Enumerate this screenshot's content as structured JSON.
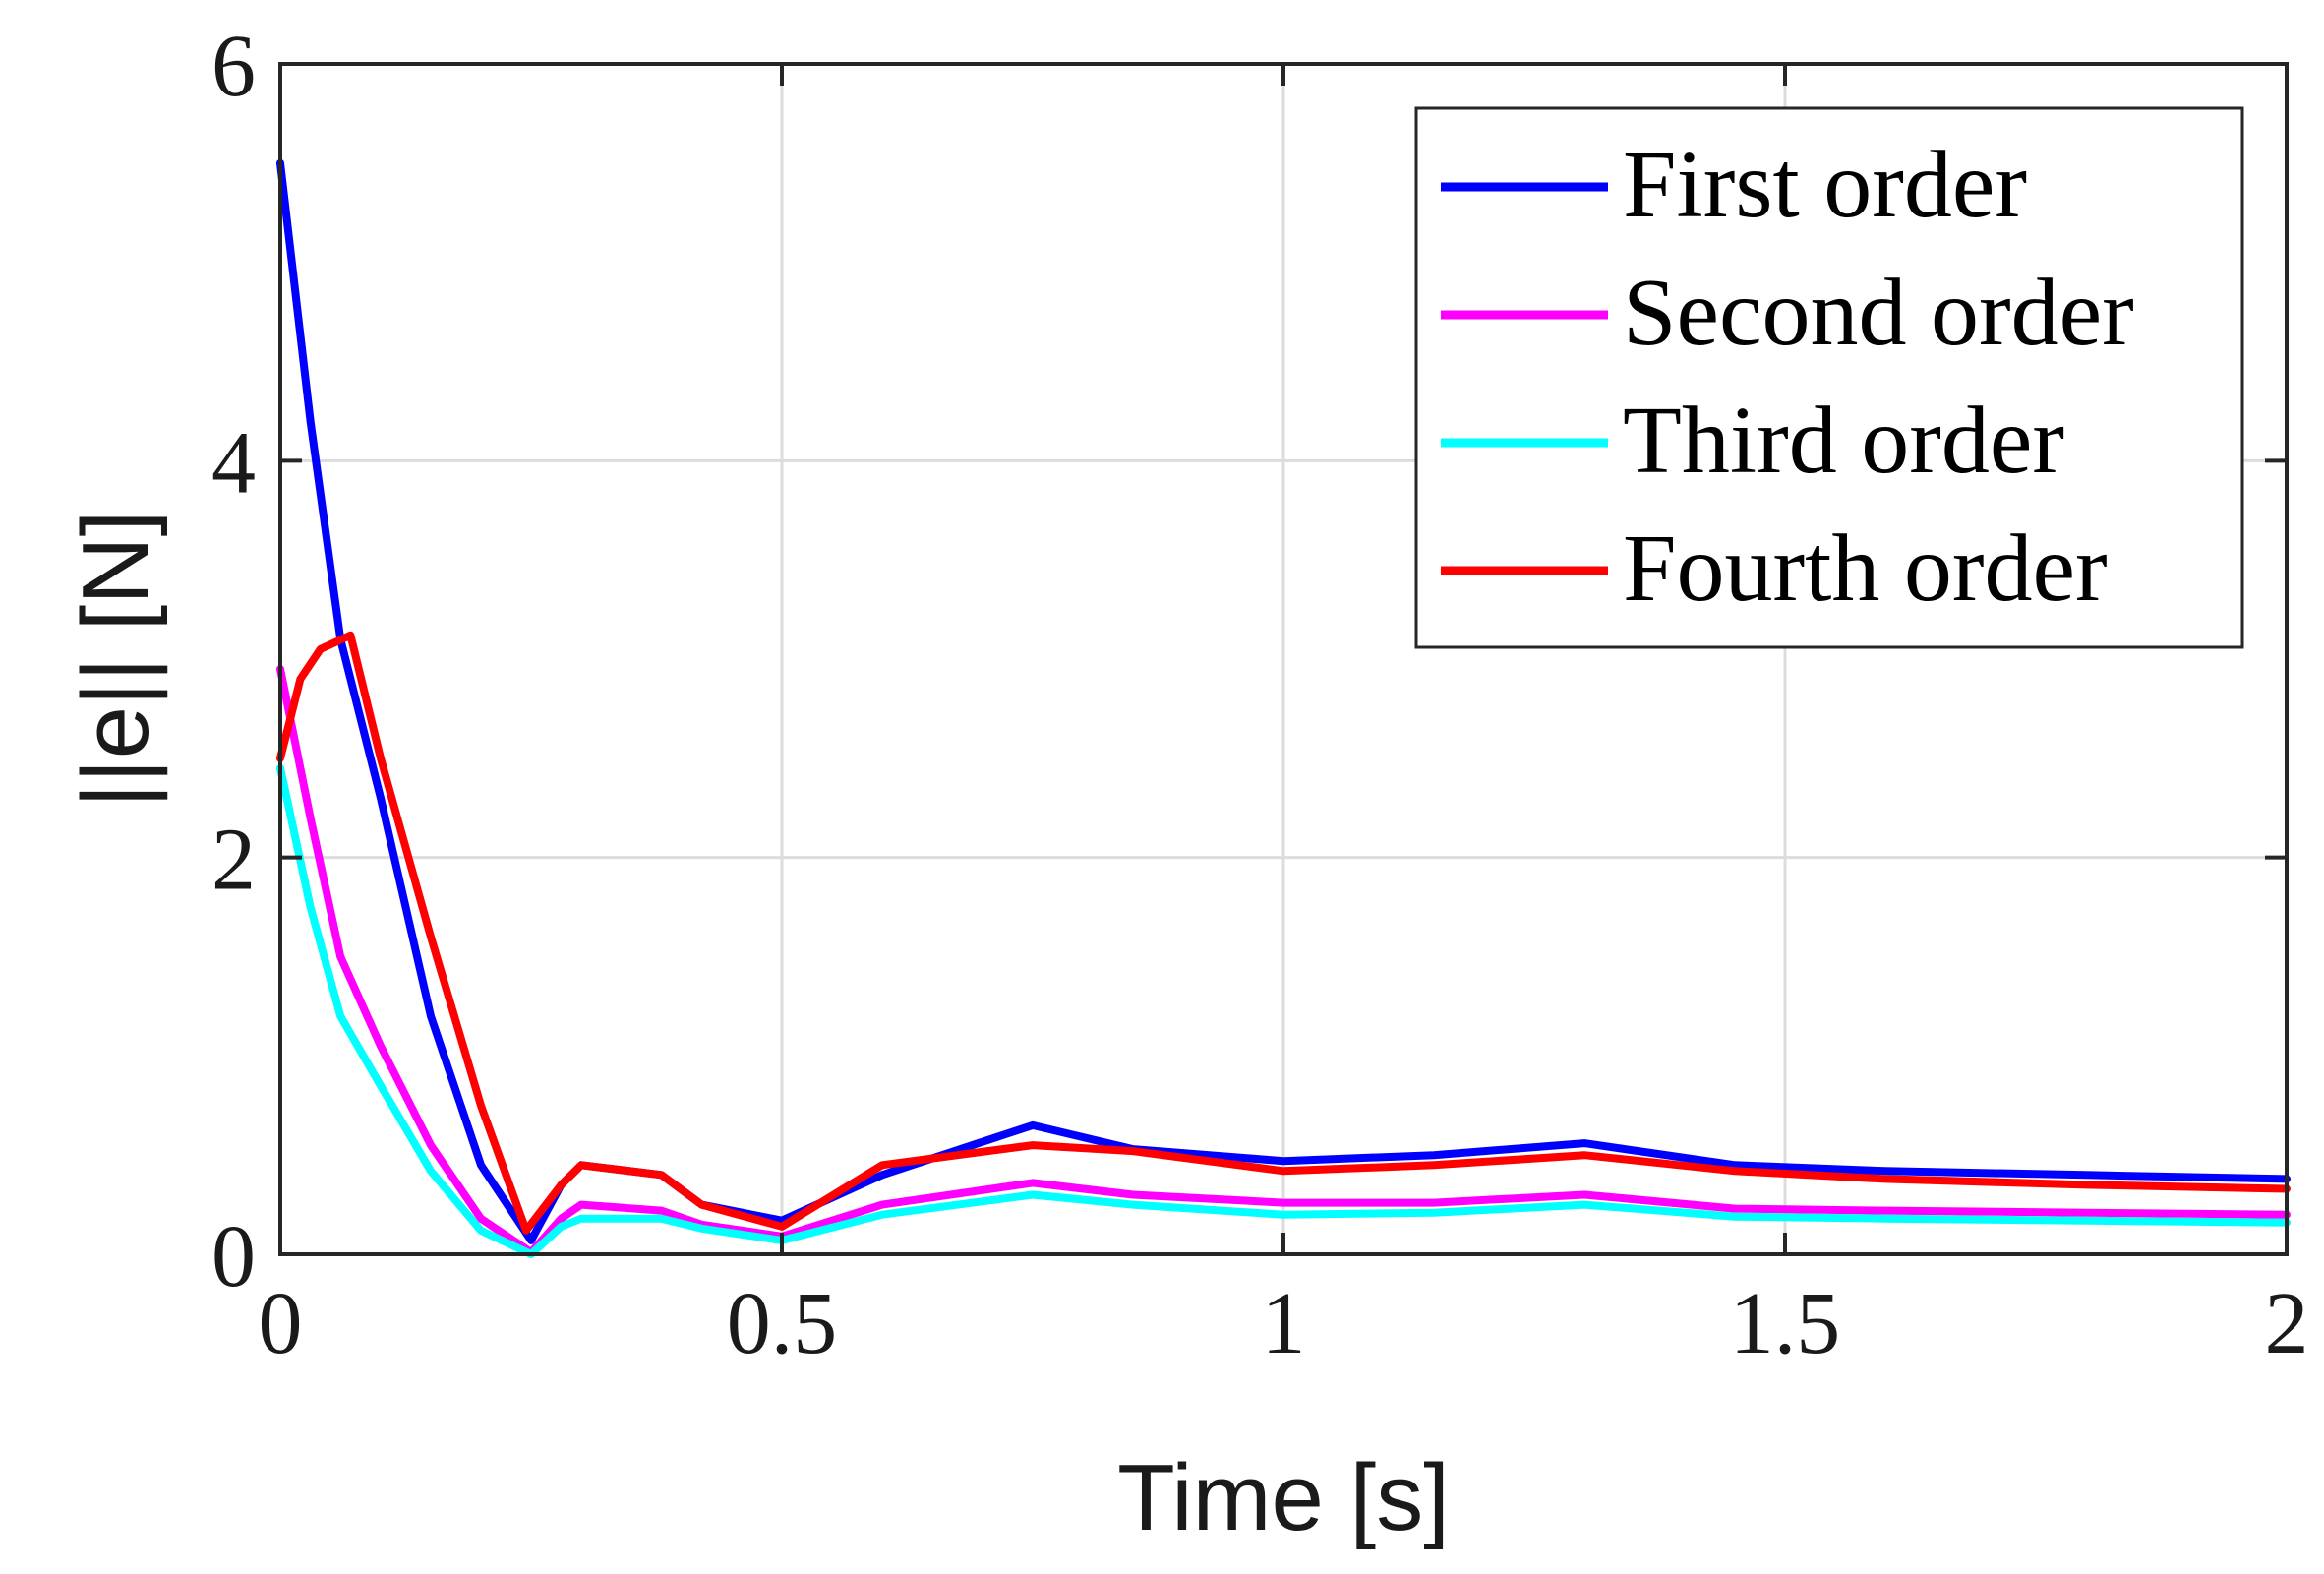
{
  "chart_data": {
    "type": "line",
    "xlabel": "Time [s]",
    "ylabel": "||e|| [N]",
    "xlim": [
      0,
      2
    ],
    "ylim": [
      0,
      6
    ],
    "x_ticks": [
      "0",
      "0.5",
      "1",
      "1.5",
      "2"
    ],
    "y_ticks": [
      "0",
      "2",
      "4",
      "6"
    ],
    "grid": true,
    "legend_position": "top-right",
    "series": [
      {
        "name": "First order",
        "color": "#0000ff",
        "x": [
          0,
          0.03,
          0.06,
          0.1,
          0.15,
          0.2,
          0.25,
          0.28,
          0.3,
          0.38,
          0.42,
          0.5,
          0.6,
          0.75,
          0.85,
          1.0,
          1.15,
          1.3,
          1.45,
          1.6,
          1.8,
          2.0
        ],
        "y": [
          5.5,
          4.2,
          3.1,
          2.3,
          1.2,
          0.45,
          0.07,
          0.35,
          0.45,
          0.4,
          0.25,
          0.17,
          0.4,
          0.65,
          0.53,
          0.47,
          0.5,
          0.56,
          0.45,
          0.42,
          0.4,
          0.38
        ]
      },
      {
        "name": "Second order",
        "color": "#ff00ff",
        "x": [
          0,
          0.03,
          0.06,
          0.1,
          0.15,
          0.2,
          0.25,
          0.28,
          0.3,
          0.38,
          0.42,
          0.5,
          0.6,
          0.75,
          0.85,
          1.0,
          1.15,
          1.3,
          1.45,
          1.6,
          1.8,
          2.0
        ],
        "y": [
          2.95,
          2.2,
          1.5,
          1.05,
          0.55,
          0.18,
          0.01,
          0.18,
          0.25,
          0.22,
          0.15,
          0.09,
          0.25,
          0.36,
          0.3,
          0.26,
          0.26,
          0.3,
          0.23,
          0.22,
          0.21,
          0.2
        ]
      },
      {
        "name": "Third order",
        "color": "#00ffff",
        "x": [
          0,
          0.03,
          0.06,
          0.1,
          0.15,
          0.2,
          0.25,
          0.28,
          0.3,
          0.38,
          0.42,
          0.5,
          0.6,
          0.75,
          0.85,
          1.0,
          1.15,
          1.3,
          1.45,
          1.6,
          1.8,
          2.0
        ],
        "y": [
          2.45,
          1.75,
          1.2,
          0.85,
          0.42,
          0.12,
          0.0,
          0.14,
          0.18,
          0.18,
          0.13,
          0.07,
          0.2,
          0.3,
          0.25,
          0.2,
          0.21,
          0.25,
          0.19,
          0.18,
          0.17,
          0.16
        ]
      },
      {
        "name": "Fourth order",
        "color": "#ff0000",
        "x": [
          0,
          0.02,
          0.04,
          0.07,
          0.1,
          0.15,
          0.2,
          0.245,
          0.28,
          0.3,
          0.38,
          0.42,
          0.5,
          0.6,
          0.75,
          0.85,
          1.0,
          1.15,
          1.3,
          1.45,
          1.6,
          1.8,
          2.0
        ],
        "y": [
          2.5,
          2.9,
          3.05,
          3.12,
          2.5,
          1.6,
          0.75,
          0.12,
          0.35,
          0.45,
          0.4,
          0.25,
          0.14,
          0.45,
          0.55,
          0.52,
          0.42,
          0.45,
          0.5,
          0.42,
          0.38,
          0.35,
          0.33
        ]
      }
    ]
  }
}
